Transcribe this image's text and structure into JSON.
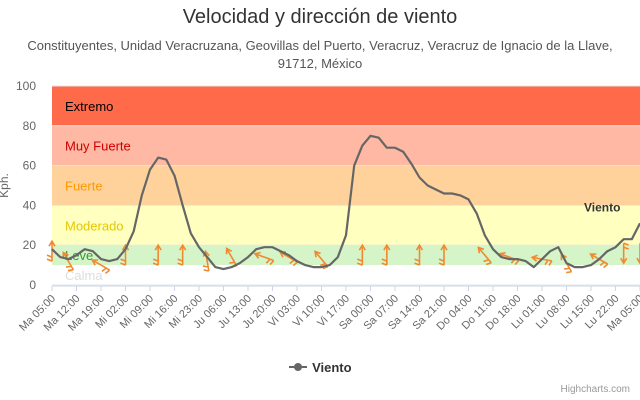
{
  "chart_data": {
    "type": "line",
    "title": "Velocidad y dirección de viento",
    "subtitle_lines": [
      "Constituyentes, Unidad Veracruzana, Geovillas del Puerto, Veracruz, Veracruz de Ignacio de la Llave,",
      "91712, México"
    ],
    "ylabel": "Kph.",
    "ylim": [
      0,
      100
    ],
    "yticks": [
      "0",
      "20",
      "40",
      "60",
      "80",
      "100"
    ],
    "xtick_labels": [
      "Ma 05:00",
      "Ma 12:00",
      "Ma 19:00",
      "Mi 02:00",
      "Mi 09:00",
      "Mi 16:00",
      "Mi 23:00",
      "Ju 06:00",
      "Ju 13:00",
      "Ju 20:00",
      "Vi 03:00",
      "Vi 10:00",
      "Vi 17:00",
      "Sa 00:00",
      "Sa 07:00",
      "Sa 14:00",
      "Sa 21:00",
      "Do 04:00",
      "Do 11:00",
      "Do 18:00",
      "Lu 01:00",
      "Lu 08:00",
      "Lu 15:00",
      "Lu 22:00",
      "Ma 05:00"
    ],
    "bands": [
      {
        "label": "Extremo",
        "from": 80,
        "to": 100,
        "fill": "#ff6a4a",
        "text": "#000000"
      },
      {
        "label": "Muy Fuerte",
        "from": 60,
        "to": 80,
        "fill": "#ffb8a3",
        "text": "#cc0000"
      },
      {
        "label": "Fuerte",
        "from": 40,
        "to": 60,
        "fill": "#ffd29b",
        "text": "#ff9900"
      },
      {
        "label": "Moderado",
        "from": 20,
        "to": 40,
        "fill": "#ffffc0",
        "text": "#e6c800"
      },
      {
        "label": "Leve",
        "from": 10,
        "to": 20,
        "fill": "#d5f5c8",
        "text": "#339933"
      },
      {
        "label": "Calma",
        "from": 0,
        "to": 10,
        "fill": "#ffffff",
        "text": "#dddddd"
      }
    ],
    "series": [
      {
        "name": "Viento",
        "color": "#666666",
        "x": [
          0,
          1,
          2,
          3,
          4,
          5,
          6,
          7,
          8,
          9,
          10,
          11,
          12,
          13,
          14,
          15,
          16,
          17,
          18,
          19,
          20,
          21,
          22,
          23,
          24,
          25,
          26,
          27,
          28,
          29,
          30,
          31,
          32,
          33,
          34,
          35,
          36,
          37,
          38,
          39,
          40,
          41,
          42,
          43,
          44,
          45,
          46,
          47,
          48,
          49,
          50,
          51,
          52,
          53,
          54,
          55,
          56,
          57,
          58,
          59,
          60,
          61,
          62,
          63,
          64,
          65,
          66,
          67,
          68,
          69,
          70,
          71,
          72
        ],
        "values": [
          18,
          14,
          13,
          15,
          18,
          17,
          13,
          12,
          13,
          18,
          27,
          45,
          58,
          64,
          63,
          55,
          40,
          26,
          19,
          14,
          9,
          8,
          9,
          11,
          14,
          18,
          19,
          19,
          17,
          15,
          12,
          10,
          9,
          9,
          10,
          14,
          25,
          60,
          70,
          75,
          74,
          69,
          69,
          67,
          61,
          54,
          50,
          48,
          46,
          46,
          45,
          43,
          36,
          25,
          18,
          14,
          13,
          13,
          12,
          9,
          13,
          17,
          19,
          11,
          9,
          9,
          10,
          13,
          17,
          19,
          23,
          23,
          31
        ]
      }
    ],
    "direction_arrows": [
      {
        "x": 0,
        "y": 17,
        "angle": 180
      },
      {
        "x": 2,
        "y": 12,
        "angle": 150
      },
      {
        "x": 6,
        "y": 10,
        "angle": 120
      },
      {
        "x": 9,
        "y": 15,
        "angle": 180
      },
      {
        "x": 13,
        "y": 15,
        "angle": 180
      },
      {
        "x": 16,
        "y": 15,
        "angle": 180
      },
      {
        "x": 19,
        "y": 12,
        "angle": 170
      },
      {
        "x": 22,
        "y": 14,
        "angle": 150
      },
      {
        "x": 26,
        "y": 14,
        "angle": 110
      },
      {
        "x": 29,
        "y": 14,
        "angle": 120
      },
      {
        "x": 33,
        "y": 13,
        "angle": 140
      },
      {
        "x": 38,
        "y": 15,
        "angle": 180
      },
      {
        "x": 41,
        "y": 15,
        "angle": 180
      },
      {
        "x": 45,
        "y": 15,
        "angle": 180
      },
      {
        "x": 48,
        "y": 15,
        "angle": 180
      },
      {
        "x": 53,
        "y": 15,
        "angle": 140
      },
      {
        "x": 56,
        "y": 14,
        "angle": 110
      },
      {
        "x": 60,
        "y": 13,
        "angle": 100
      },
      {
        "x": 63,
        "y": 11,
        "angle": 150
      },
      {
        "x": 67,
        "y": 13,
        "angle": 120
      },
      {
        "x": 70,
        "y": 16,
        "angle": 0
      },
      {
        "x": 72,
        "y": 16,
        "angle": 0
      }
    ],
    "data_label": "Viento",
    "legend": {
      "position": "bottom",
      "label": "Viento"
    },
    "grid": true
  },
  "credits": "Highcharts.com"
}
